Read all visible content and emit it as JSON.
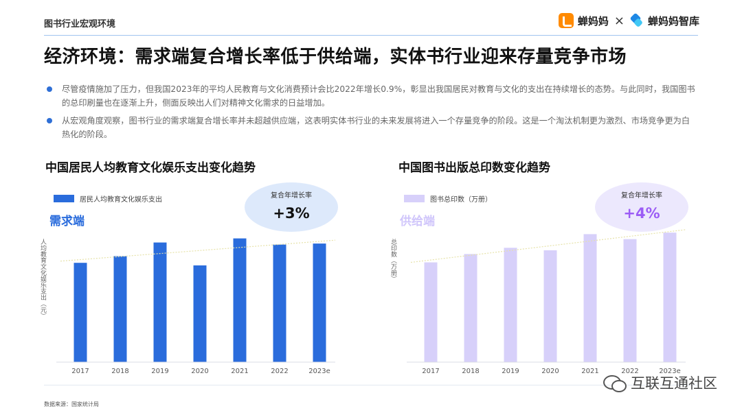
{
  "header": {
    "section_label": "图书行业宏观环境",
    "logo_a": "蝉妈妈",
    "logo_separator": "×",
    "logo_b": "蝉妈妈智库"
  },
  "title": "经济环境：需求端复合增长率低于供给端，实体书行业迎来存量竞争市场",
  "bullets": [
    "尽管疫情施加了压力，但我国2023年的平均人民教育与文化消费预计会比2022年增长0.9%，彰显出我国居民对教育与文化的支出在持续增长的态势。与此同时，我国图书的总印刷量也在逐渐上升，侧面反映出人们对精神文化需求的日益增加。",
    "从宏观角度观察，图书行业的需求端复合增长率并未超越供应端，这表明实体书行业的未来发展将进入一个存量竞争的阶段。这是一个淘汰机制更为激烈、市场竞争更为白热化的阶段。"
  ],
  "source": "数据来源：国家统计局",
  "watermark": "互联互通社区",
  "colors": {
    "demand": "#2a6cdc",
    "supply": "#d7d0fa",
    "demand_label": "#2a6cdc",
    "supply_label": "#d0c6fb",
    "bubble": "#dde9fb",
    "bubble_b": "#ece8fd",
    "rate_a": "#111111",
    "rate_b": "#9b5cf5"
  },
  "chart_data": [
    {
      "type": "bar",
      "title": "中国居民人均教育文化娱乐支出变化趋势",
      "tag": "需求端",
      "legend": [
        "居民人均教育文化娱乐支出"
      ],
      "ylabel": "人均教育文化娱乐支出（元）",
      "categories": [
        "2017",
        "2018",
        "2019",
        "2020",
        "2021",
        "2022",
        "2023e"
      ],
      "values": [
        2086,
        2226,
        2513,
        2032,
        2599,
        2469,
        2491
      ],
      "ylim": [
        0,
        3400
      ],
      "trendline": true,
      "cagr_label": "复合年增长率",
      "cagr_value": "+3%"
    },
    {
      "type": "bar",
      "title": "中国图书出版总印数变化趋势",
      "tag": "供给端",
      "legend": [
        "图书总印数（万册）"
      ],
      "ylabel": "总印数（万册）",
      "categories": [
        "2017",
        "2018",
        "2019",
        "2020",
        "2021",
        "2022",
        "2023e"
      ],
      "values": [
        924400,
        1001700,
        1059700,
        1036600,
        1186200,
        1140000,
        1200000
      ],
      "ylim": [
        0,
        1500000
      ],
      "trendline": true,
      "cagr_label": "复合年增长率",
      "cagr_value": "+4%"
    }
  ]
}
